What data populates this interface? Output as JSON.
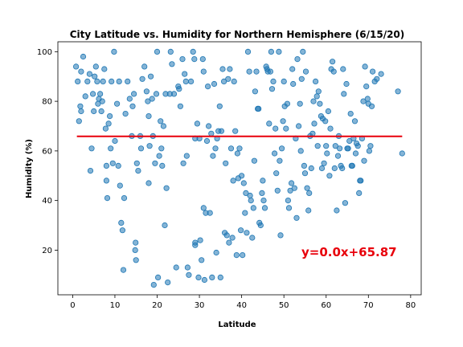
{
  "chart_data": {
    "type": "scatter",
    "title": "City Latitude vs. Humidity for Northern Hemisphere (6/15/20)",
    "xlabel": "Latitude",
    "ylabel": "Humidity (%)",
    "xlim": [
      -3.5,
      82.5
    ],
    "ylim": [
      2,
      104
    ],
    "xticks": [
      0,
      10,
      20,
      30,
      40,
      50,
      60,
      70,
      80
    ],
    "yticks": [
      20,
      40,
      60,
      80,
      100
    ],
    "grid": false,
    "regression": {
      "slope": 0.0,
      "intercept": 65.87,
      "x_range": [
        1,
        78
      ],
      "color": "#e8000b"
    },
    "annotation": {
      "text": "y=0.0x+65.87",
      "color": "#e8000b"
    },
    "marker_color": "#1f77b4",
    "points": [
      [
        0.8,
        94
      ],
      [
        1.2,
        88
      ],
      [
        1.5,
        72
      ],
      [
        1.8,
        78
      ],
      [
        2,
        76
      ],
      [
        2,
        92
      ],
      [
        2.5,
        98
      ],
      [
        3,
        82
      ],
      [
        3.5,
        88
      ],
      [
        4,
        91
      ],
      [
        4.2,
        52
      ],
      [
        4.5,
        61
      ],
      [
        4.8,
        83
      ],
      [
        5,
        76
      ],
      [
        5.2,
        90
      ],
      [
        5.5,
        94
      ],
      [
        5.8,
        88
      ],
      [
        6,
        79
      ],
      [
        6.2,
        81
      ],
      [
        6.5,
        83
      ],
      [
        6.8,
        76
      ],
      [
        7,
        80
      ],
      [
        7.2,
        88
      ],
      [
        7.5,
        93
      ],
      [
        7.8,
        69
      ],
      [
        8,
        48
      ],
      [
        8,
        54
      ],
      [
        8.2,
        41
      ],
      [
        8.5,
        71
      ],
      [
        8.8,
        74
      ],
      [
        9,
        61
      ],
      [
        9.2,
        88
      ],
      [
        9.5,
        55
      ],
      [
        9.8,
        100
      ],
      [
        10,
        64
      ],
      [
        10.5,
        79
      ],
      [
        10.8,
        54
      ],
      [
        11,
        88
      ],
      [
        11.2,
        46
      ],
      [
        11.5,
        31
      ],
      [
        11.8,
        28
      ],
      [
        12,
        12
      ],
      [
        12.2,
        41
      ],
      [
        12.5,
        75
      ],
      [
        13,
        88
      ],
      [
        13.5,
        81
      ],
      [
        14,
        66
      ],
      [
        14.2,
        78
      ],
      [
        14.5,
        83
      ],
      [
        14.8,
        20
      ],
      [
        14.9,
        23
      ],
      [
        15,
        16
      ],
      [
        15.2,
        55
      ],
      [
        15.5,
        52
      ],
      [
        16,
        66
      ],
      [
        16.2,
        61
      ],
      [
        16.5,
        89
      ],
      [
        17,
        94
      ],
      [
        17.5,
        84
      ],
      [
        17.8,
        80
      ],
      [
        18,
        47
      ],
      [
        18,
        74
      ],
      [
        18.2,
        62
      ],
      [
        18.5,
        90
      ],
      [
        18.8,
        81
      ],
      [
        19,
        66
      ],
      [
        19.2,
        6
      ],
      [
        19.5,
        55
      ],
      [
        19.8,
        83
      ],
      [
        20,
        100
      ],
      [
        20.2,
        9
      ],
      [
        20.5,
        58
      ],
      [
        20.8,
        72
      ],
      [
        21,
        61
      ],
      [
        21.2,
        54
      ],
      [
        21.5,
        70
      ],
      [
        21.8,
        30
      ],
      [
        22,
        83
      ],
      [
        22.2,
        45
      ],
      [
        22.5,
        7
      ],
      [
        23,
        83
      ],
      [
        23.2,
        100
      ],
      [
        23.5,
        95
      ],
      [
        24,
        83
      ],
      [
        24.5,
        13
      ],
      [
        25,
        86
      ],
      [
        25.2,
        85
      ],
      [
        25.5,
        78
      ],
      [
        26,
        97
      ],
      [
        26.2,
        55
      ],
      [
        26.5,
        91
      ],
      [
        26.8,
        88
      ],
      [
        27,
        58
      ],
      [
        27.2,
        13
      ],
      [
        27.5,
        10
      ],
      [
        28,
        88
      ],
      [
        28.5,
        100
      ],
      [
        28.8,
        97
      ],
      [
        29,
        22
      ],
      [
        29,
        23
      ],
      [
        29,
        65
      ],
      [
        29.5,
        71
      ],
      [
        29.8,
        9
      ],
      [
        30,
        65
      ],
      [
        30.2,
        24
      ],
      [
        30.5,
        16
      ],
      [
        30.8,
        97
      ],
      [
        31,
        92
      ],
      [
        31,
        37
      ],
      [
        31.2,
        8
      ],
      [
        31.5,
        35
      ],
      [
        31.8,
        64
      ],
      [
        32,
        86
      ],
      [
        32.2,
        70
      ],
      [
        32.5,
        35
      ],
      [
        32.8,
        67
      ],
      [
        33,
        9
      ],
      [
        33.2,
        58
      ],
      [
        33.5,
        87
      ],
      [
        33.8,
        61
      ],
      [
        34,
        19
      ],
      [
        34.2,
        65
      ],
      [
        34.5,
        68
      ],
      [
        34.8,
        78
      ],
      [
        35,
        9
      ],
      [
        35.2,
        68
      ],
      [
        35.5,
        93
      ],
      [
        35.8,
        88
      ],
      [
        36,
        27
      ],
      [
        36.2,
        55
      ],
      [
        36.5,
        26
      ],
      [
        36.8,
        89
      ],
      [
        37,
        23
      ],
      [
        37.2,
        93
      ],
      [
        37.5,
        61
      ],
      [
        37.8,
        25
      ],
      [
        38,
        48
      ],
      [
        38.2,
        88
      ],
      [
        38.5,
        68
      ],
      [
        38.8,
        18
      ],
      [
        39,
        59
      ],
      [
        39.2,
        49
      ],
      [
        39.5,
        61
      ],
      [
        39.8,
        28
      ],
      [
        40,
        50
      ],
      [
        40.2,
        18
      ],
      [
        40.5,
        47
      ],
      [
        40.8,
        35
      ],
      [
        41,
        43
      ],
      [
        41.2,
        27
      ],
      [
        41.5,
        100
      ],
      [
        41.8,
        92
      ],
      [
        42,
        42
      ],
      [
        42.2,
        40
      ],
      [
        42.5,
        25
      ],
      [
        42.8,
        37
      ],
      [
        43,
        56
      ],
      [
        43.2,
        84
      ],
      [
        43.5,
        92
      ],
      [
        43.8,
        77
      ],
      [
        44,
        77
      ],
      [
        44.2,
        31
      ],
      [
        44.5,
        30
      ],
      [
        44.8,
        43
      ],
      [
        45,
        48
      ],
      [
        45.2,
        40
      ],
      [
        45.5,
        37
      ],
      [
        45.8,
        94
      ],
      [
        46,
        93
      ],
      [
        46.2,
        92
      ],
      [
        46.5,
        71
      ],
      [
        46.8,
        92
      ],
      [
        47,
        100
      ],
      [
        47.2,
        85
      ],
      [
        47.5,
        88
      ],
      [
        47.8,
        59
      ],
      [
        48,
        69
      ],
      [
        48.2,
        51
      ],
      [
        48.5,
        44
      ],
      [
        48.8,
        100
      ],
      [
        49,
        56
      ],
      [
        49.2,
        26
      ],
      [
        49.5,
        61
      ],
      [
        49.8,
        72
      ],
      [
        50,
        88
      ],
      [
        50.2,
        78
      ],
      [
        50.5,
        69
      ],
      [
        50.8,
        79
      ],
      [
        51,
        40
      ],
      [
        51.2,
        37
      ],
      [
        51.5,
        44
      ],
      [
        51.8,
        47
      ],
      [
        52,
        93
      ],
      [
        52.2,
        87
      ],
      [
        52.5,
        45
      ],
      [
        52.8,
        65
      ],
      [
        53,
        33
      ],
      [
        53.2,
        97
      ],
      [
        53.5,
        70
      ],
      [
        53.8,
        79
      ],
      [
        54,
        60
      ],
      [
        54.2,
        89
      ],
      [
        54.5,
        100
      ],
      [
        54.8,
        54
      ],
      [
        55,
        51
      ],
      [
        55.2,
        92
      ],
      [
        55.5,
        45
      ],
      [
        55.8,
        36
      ],
      [
        56,
        43
      ],
      [
        56.2,
        66
      ],
      [
        56.5,
        53
      ],
      [
        56.8,
        67
      ],
      [
        57,
        80
      ],
      [
        57.2,
        71
      ],
      [
        57.5,
        88
      ],
      [
        57.8,
        82
      ],
      [
        58,
        62
      ],
      [
        58.2,
        84
      ],
      [
        58.5,
        79
      ],
      [
        58.8,
        74
      ],
      [
        59,
        53
      ],
      [
        59.2,
        73
      ],
      [
        59.5,
        55
      ],
      [
        59.8,
        72
      ],
      [
        60,
        62
      ],
      [
        60.2,
        59
      ],
      [
        60.5,
        76
      ],
      [
        60.8,
        50
      ],
      [
        61,
        69
      ],
      [
        61.2,
        93
      ],
      [
        61.5,
        96
      ],
      [
        61.8,
        92
      ],
      [
        62,
        53
      ],
      [
        62.2,
        62
      ],
      [
        62.5,
        36
      ],
      [
        62.8,
        58
      ],
      [
        63,
        66
      ],
      [
        63.2,
        61
      ],
      [
        63.5,
        54
      ],
      [
        63.8,
        53
      ],
      [
        64,
        93
      ],
      [
        64.2,
        83
      ],
      [
        64.5,
        39
      ],
      [
        64.8,
        87
      ],
      [
        65,
        61
      ],
      [
        65.2,
        61
      ],
      [
        65.5,
        64
      ],
      [
        65.8,
        75
      ],
      [
        66,
        54
      ],
      [
        66.2,
        54
      ],
      [
        66.5,
        65
      ],
      [
        66.8,
        72
      ],
      [
        67,
        59
      ],
      [
        67.2,
        63
      ],
      [
        67.5,
        62
      ],
      [
        67.8,
        43
      ],
      [
        68,
        48
      ],
      [
        68.2,
        48
      ],
      [
        68.5,
        65
      ],
      [
        68.8,
        80
      ],
      [
        69,
        56
      ],
      [
        69.2,
        94
      ],
      [
        69.5,
        86
      ],
      [
        69.8,
        81
      ],
      [
        70,
        79
      ],
      [
        70.2,
        60
      ],
      [
        70.5,
        62
      ],
      [
        70.8,
        78
      ],
      [
        71,
        92
      ],
      [
        71.5,
        88
      ],
      [
        72,
        89
      ],
      [
        73,
        91
      ],
      [
        77,
        84
      ],
      [
        78,
        59
      ]
    ]
  }
}
